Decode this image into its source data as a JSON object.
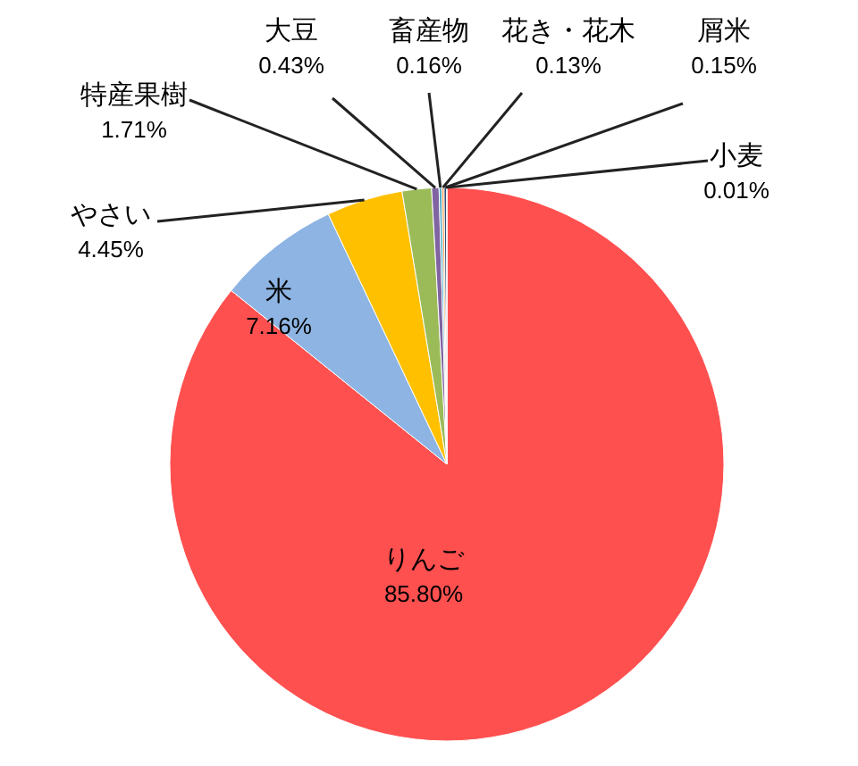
{
  "chart_data": {
    "type": "pie",
    "categories": [
      "りんご",
      "米",
      "やさい",
      "特産果樹",
      "大豆",
      "畜産物",
      "花き・花木",
      "屑米",
      "小麦"
    ],
    "values": [
      85.8,
      7.16,
      4.45,
      1.71,
      0.43,
      0.16,
      0.13,
      0.15,
      0.01
    ],
    "value_labels": [
      "85.80%",
      "7.16%",
      "4.45%",
      "1.71%",
      "0.43%",
      "0.16%",
      "0.13%",
      "0.15%",
      "0.01%"
    ],
    "colors": [
      "#ff5050",
      "#8db4e2",
      "#ffc000",
      "#9bbb59",
      "#8064a2",
      "#4bacc6",
      "#f79646",
      "#2c4d75",
      "#772c2a"
    ]
  }
}
